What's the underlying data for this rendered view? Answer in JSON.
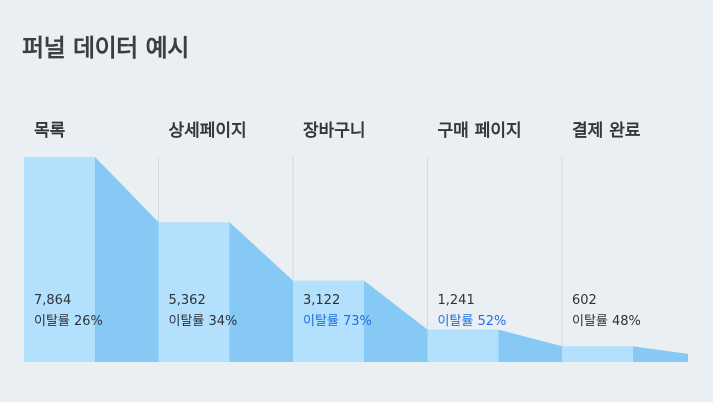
{
  "title": "퍼널 데이터 예시",
  "colors": {
    "background": "#e9eff3",
    "bar": "#b3e0fd",
    "drop_area": "#86c9f5",
    "divider": "#d3dbe1",
    "highlight_text": "#1f6fe5"
  },
  "chart_data": {
    "type": "funnel",
    "title": "퍼널 데이터 예시",
    "stages": [
      {
        "name": "목록",
        "value": 7864,
        "value_label": "7,864",
        "drop_label": "이탈률 26%",
        "drop_rate": 26,
        "highlight": false
      },
      {
        "name": "상세페이지",
        "value": 5362,
        "value_label": "5,362",
        "drop_label": "이탈률 34%",
        "drop_rate": 34,
        "highlight": false
      },
      {
        "name": "장바구니",
        "value": 3122,
        "value_label": "3,122",
        "drop_label": "이탈률 73%",
        "drop_rate": 73,
        "highlight": true
      },
      {
        "name": "구매 페이지",
        "value": 1241,
        "value_label": "1,241",
        "drop_label": "이탈률 52%",
        "drop_rate": 52,
        "highlight": true
      },
      {
        "name": "결제 완료",
        "value": 602,
        "value_label": "602",
        "drop_label": "이탈률 48%",
        "drop_rate": 48,
        "highlight": false
      }
    ]
  }
}
